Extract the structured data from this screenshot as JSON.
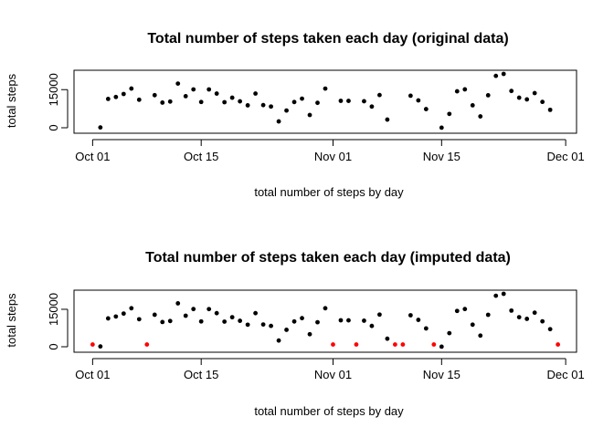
{
  "chart_data": [
    {
      "type": "scatter",
      "title": "Total number of steps taken each day  (original data)",
      "xlabel": "total number of steps by day",
      "ylabel": "total steps",
      "x_ticks": [
        {
          "label": "Oct 01",
          "day": 1
        },
        {
          "label": "Oct 15",
          "day": 15
        },
        {
          "label": "Nov 01",
          "day": 32
        },
        {
          "label": "Nov 15",
          "day": 46
        },
        {
          "label": "Dec 01",
          "day": 62
        }
      ],
      "y_ticks": [
        0,
        15000
      ],
      "ylim": [
        0,
        21194
      ],
      "xlim": [
        1,
        61
      ],
      "series": [
        {
          "color": "#000000",
          "points": [
            [
              2,
              126
            ],
            [
              3,
              11352
            ],
            [
              4,
              12116
            ],
            [
              5,
              13294
            ],
            [
              6,
              15420
            ],
            [
              7,
              11015
            ],
            [
              9,
              12811
            ],
            [
              10,
              9900
            ],
            [
              11,
              10304
            ],
            [
              12,
              17382
            ],
            [
              13,
              12426
            ],
            [
              14,
              15098
            ],
            [
              15,
              10139
            ],
            [
              16,
              15084
            ],
            [
              17,
              13452
            ],
            [
              18,
              10056
            ],
            [
              19,
              11829
            ],
            [
              20,
              10395
            ],
            [
              21,
              8821
            ],
            [
              22,
              13460
            ],
            [
              23,
              8918
            ],
            [
              24,
              8355
            ],
            [
              25,
              2492
            ],
            [
              26,
              6778
            ],
            [
              27,
              10119
            ],
            [
              28,
              11458
            ],
            [
              29,
              5018
            ],
            [
              30,
              9819
            ],
            [
              31,
              15414
            ],
            [
              33,
              10600
            ],
            [
              34,
              10571
            ],
            [
              36,
              10439
            ],
            [
              37,
              8334
            ],
            [
              38,
              12883
            ],
            [
              39,
              3219
            ],
            [
              42,
              12608
            ],
            [
              43,
              10765
            ],
            [
              44,
              7336
            ],
            [
              46,
              41
            ],
            [
              47,
              5441
            ],
            [
              48,
              14339
            ],
            [
              49,
              15110
            ],
            [
              50,
              8841
            ],
            [
              51,
              4472
            ],
            [
              52,
              12787
            ],
            [
              53,
              20427
            ],
            [
              54,
              21194
            ],
            [
              55,
              14478
            ],
            [
              56,
              11834
            ],
            [
              57,
              11162
            ],
            [
              58,
              13646
            ],
            [
              59,
              10183
            ],
            [
              60,
              7047
            ]
          ]
        }
      ]
    },
    {
      "type": "scatter",
      "title": "Total number of steps taken each day (imputed data)",
      "xlabel": "total number of steps by day",
      "ylabel": "total steps",
      "x_ticks": [
        {
          "label": "Oct 01",
          "day": 1
        },
        {
          "label": "Oct 15",
          "day": 15
        },
        {
          "label": "Nov 01",
          "day": 32
        },
        {
          "label": "Nov 15",
          "day": 46
        },
        {
          "label": "Dec 01",
          "day": 62
        }
      ],
      "y_ticks": [
        0,
        15000
      ],
      "ylim": [
        0,
        21194
      ],
      "xlim": [
        1,
        61
      ],
      "series": [
        {
          "color": "#000000",
          "points": [
            [
              2,
              126
            ],
            [
              3,
              11352
            ],
            [
              4,
              12116
            ],
            [
              5,
              13294
            ],
            [
              6,
              15420
            ],
            [
              7,
              11015
            ],
            [
              9,
              12811
            ],
            [
              10,
              9900
            ],
            [
              11,
              10304
            ],
            [
              12,
              17382
            ],
            [
              13,
              12426
            ],
            [
              14,
              15098
            ],
            [
              15,
              10139
            ],
            [
              16,
              15084
            ],
            [
              17,
              13452
            ],
            [
              18,
              10056
            ],
            [
              19,
              11829
            ],
            [
              20,
              10395
            ],
            [
              21,
              8821
            ],
            [
              22,
              13460
            ],
            [
              23,
              8918
            ],
            [
              24,
              8355
            ],
            [
              25,
              2492
            ],
            [
              26,
              6778
            ],
            [
              27,
              10119
            ],
            [
              28,
              11458
            ],
            [
              29,
              5018
            ],
            [
              30,
              9819
            ],
            [
              31,
              15414
            ],
            [
              33,
              10600
            ],
            [
              34,
              10571
            ],
            [
              36,
              10439
            ],
            [
              37,
              8334
            ],
            [
              38,
              12883
            ],
            [
              39,
              3219
            ],
            [
              42,
              12608
            ],
            [
              43,
              10765
            ],
            [
              44,
              7336
            ],
            [
              46,
              41
            ],
            [
              47,
              5441
            ],
            [
              48,
              14339
            ],
            [
              49,
              15110
            ],
            [
              50,
              8841
            ],
            [
              51,
              4472
            ],
            [
              52,
              12787
            ],
            [
              53,
              20427
            ],
            [
              54,
              21194
            ],
            [
              55,
              14478
            ],
            [
              56,
              11834
            ],
            [
              57,
              11162
            ],
            [
              58,
              13646
            ],
            [
              59,
              10183
            ],
            [
              60,
              7047
            ]
          ]
        },
        {
          "color": "#ff0000",
          "points": [
            [
              1,
              900
            ],
            [
              8,
              900
            ],
            [
              32,
              900
            ],
            [
              35,
              900
            ],
            [
              40,
              900
            ],
            [
              41,
              900
            ],
            [
              45,
              900
            ],
            [
              61,
              900
            ]
          ]
        }
      ]
    }
  ]
}
